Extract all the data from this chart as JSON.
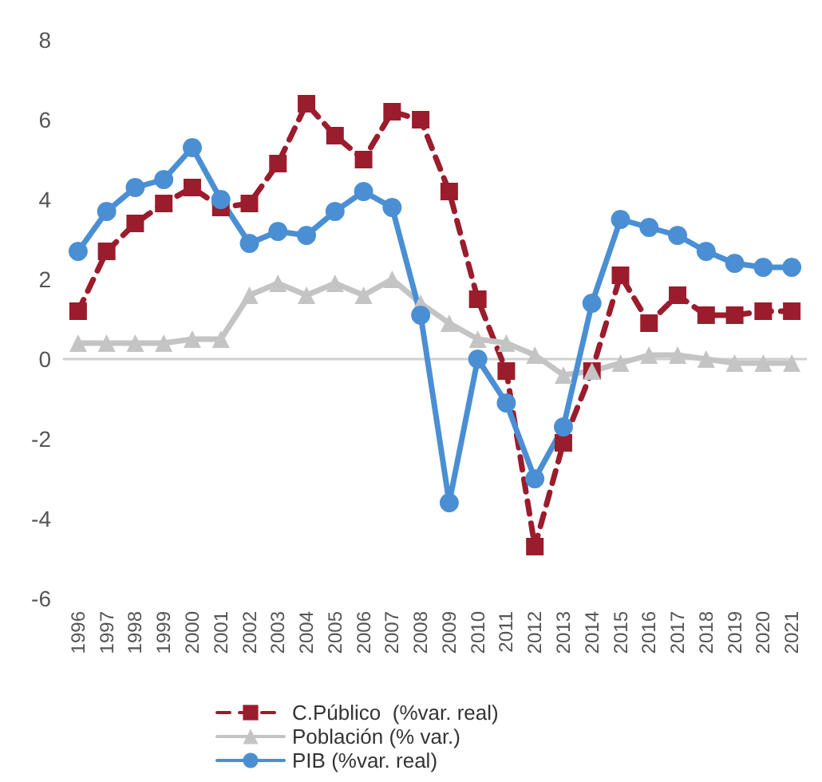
{
  "chart_data": {
    "type": "line",
    "categories": [
      "1996",
      "1997",
      "1998",
      "1999",
      "2000",
      "2001",
      "2002",
      "2003",
      "2004",
      "2005",
      "2006",
      "2007",
      "2008",
      "2009",
      "2010",
      "2011",
      "2012",
      "2013",
      "2014",
      "2015",
      "2016",
      "2017",
      "2018",
      "2019",
      "2020",
      "2021"
    ],
    "series": [
      {
        "name": "C.Público  (%var. real)",
        "color": "#9b1c2c",
        "marker": "square",
        "line_style": "dashed",
        "values": [
          1.2,
          2.7,
          3.4,
          3.9,
          4.3,
          3.8,
          3.9,
          4.9,
          6.4,
          5.6,
          5.0,
          6.2,
          6.0,
          4.2,
          1.5,
          -0.3,
          -4.7,
          -2.1,
          -0.3,
          2.1,
          0.9,
          1.6,
          1.1,
          1.1,
          1.2,
          1.2
        ]
      },
      {
        "name": "Población (% var.)",
        "color": "#c4c4c4",
        "marker": "triangle",
        "line_style": "solid",
        "values": [
          0.4,
          0.4,
          0.4,
          0.4,
          0.5,
          0.5,
          1.6,
          1.9,
          1.6,
          1.9,
          1.6,
          2.0,
          1.4,
          0.9,
          0.5,
          0.4,
          0.1,
          -0.4,
          -0.3,
          -0.1,
          0.1,
          0.1,
          0.0,
          -0.1,
          -0.1,
          -0.1
        ]
      },
      {
        "name": "PIB (%var. real)",
        "color": "#4a8fd4",
        "marker": "circle",
        "line_style": "solid",
        "values": [
          2.7,
          3.7,
          4.3,
          4.5,
          5.3,
          4.0,
          2.9,
          3.2,
          3.1,
          3.7,
          4.2,
          3.8,
          1.1,
          -3.6,
          0.0,
          -1.1,
          -3.0,
          -1.7,
          1.4,
          3.5,
          3.3,
          3.1,
          2.7,
          2.4,
          2.3,
          2.3
        ]
      }
    ],
    "ylim": [
      -6,
      8
    ],
    "yticks": [
      -6,
      -4,
      -2,
      0,
      2,
      4,
      6,
      8
    ],
    "legend": "bottom"
  }
}
